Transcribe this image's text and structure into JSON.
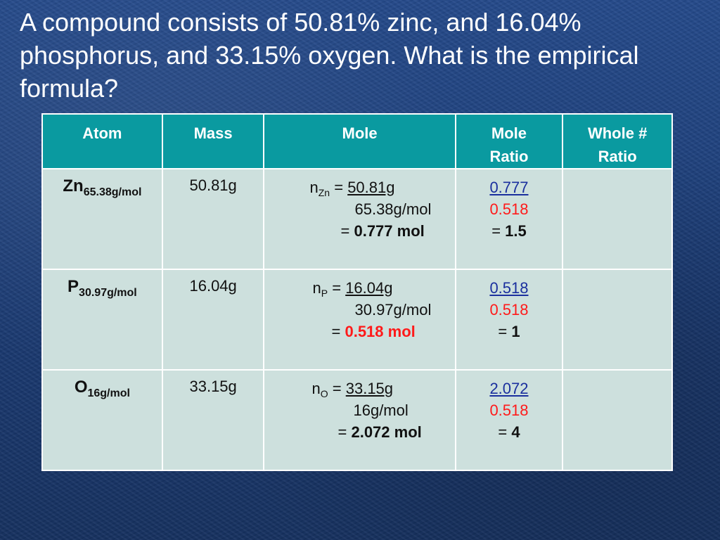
{
  "title": "A compound consists of 50.81% zinc, and 16.04% phosphorus, and 33.15% oxygen. What is the empirical formula?",
  "headers": {
    "atom": "Atom",
    "mass": "Mass",
    "mole": "Mole",
    "mole_ratio_1": "Mole",
    "mole_ratio_2": "Ratio",
    "whole_1": "Whole #",
    "whole_2": "Ratio"
  },
  "rows": [
    {
      "symbol": "Zn",
      "molar_mass": "65.38g/mol",
      "mass": "50.81g",
      "n_sub": "Zn",
      "numerator": "50.81g",
      "denominator": "65.38g/mol",
      "moles": "0.777 mol",
      "ratio_num": "0.777",
      "ratio_den": "0.518",
      "ratio_result": "1.5",
      "whole": ""
    },
    {
      "symbol": "P",
      "molar_mass": "30.97g/mol",
      "mass": "16.04g",
      "n_sub": "P",
      "numerator": "16.04g",
      "denominator": "30.97g/mol",
      "moles": "0.518 mol",
      "ratio_num": "0.518",
      "ratio_den": "0.518",
      "ratio_result": "1",
      "whole": ""
    },
    {
      "symbol": "O",
      "molar_mass": "16g/mol",
      "mass": "33.15g",
      "n_sub": "O",
      "numerator": "33.15g",
      "denominator": "16g/mol",
      "moles": "2.072 mol",
      "ratio_num": "2.072",
      "ratio_den": "0.518",
      "ratio_result": "4",
      "whole": ""
    }
  ],
  "symbols": {
    "n": "n",
    "eq": "="
  },
  "colors": {
    "header_bg": "#0a9aa0",
    "cell_bg": "#cde0dd",
    "highlight": "#ff1a1a",
    "ratio_num": "#1a2f9e"
  }
}
